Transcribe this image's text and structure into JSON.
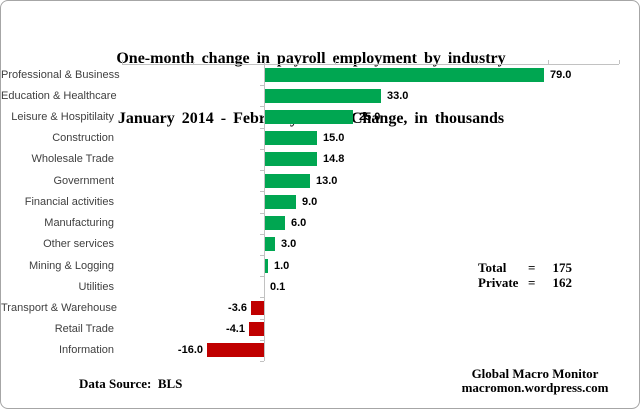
{
  "title": {
    "line1": "One-month change in payroll employment by industry",
    "line2": "January 2014 - February 2014  Change, in thousands"
  },
  "chart_data": {
    "type": "bar",
    "orientation": "horizontal",
    "title": "One-month change in payroll employment by industry",
    "subtitle": "January 2014 - February 2014  Change, in thousands",
    "categories": [
      "Professional & Business",
      "Education & Healthcare",
      "Leisure & Hospitilaity",
      "Construction",
      "Wholesale Trade",
      "Government",
      "Financial activities",
      "Manufacturing",
      "Other services",
      "Mining & Logging",
      "Utilities",
      "Transport & Warehouse",
      "Retail Trade",
      "Information"
    ],
    "values": [
      79.0,
      33.0,
      25.0,
      15.0,
      14.8,
      13.0,
      9.0,
      6.0,
      3.0,
      1.0,
      0.1,
      -3.6,
      -4.1,
      -16.0
    ],
    "value_labels": [
      "79.0",
      "33.0",
      "25.0",
      "15.0",
      "14.8",
      "13.0",
      "9.0",
      "6.0",
      "3.0",
      "1.0",
      "0.1",
      "-3.6",
      "-4.1",
      "-16.0"
    ],
    "xlim": [
      -40,
      100
    ],
    "tick_interval": 20,
    "value_axis_position": "top",
    "grid": false,
    "legend": "none",
    "positive_color": "#00a651",
    "negative_color": "#c00000",
    "axis_color": "#c2c2c2"
  },
  "annotations": {
    "totals": [
      {
        "label": "Total",
        "eq": "=",
        "value": "175"
      },
      {
        "label": "Private",
        "eq": "=",
        "value": "162"
      }
    ],
    "data_source": "Data Source:  BLS",
    "credit_line1": "Global Macro Monitor",
    "credit_line2": "macromon.wordpress.com"
  }
}
